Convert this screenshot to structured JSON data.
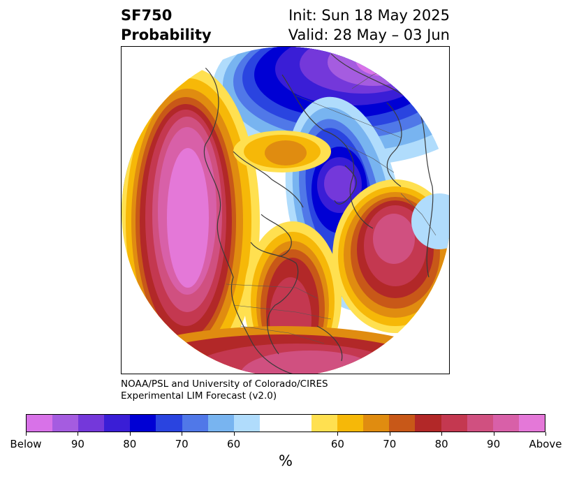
{
  "title": {
    "left_line1": "SF750",
    "left_line2": "Probability",
    "right_line1": "Init: Sun 18 May 2025",
    "right_line2": "Valid: 28 May – 03 Jun"
  },
  "credit": {
    "line1": "NOAA/PSL and University of Colorado/CIRES",
    "line2": "Experimental LIM Forecast (v2.0)"
  },
  "colorbar": {
    "colors": [
      "#d872e8",
      "#a55ce0",
      "#7438da",
      "#3a1ed6",
      "#0000d4",
      "#2a44e0",
      "#5078e8",
      "#78b4f0",
      "#b0dcfc",
      "#ffffff",
      "#ffffff",
      "#ffe050",
      "#f6b808",
      "#e08c10",
      "#c85818",
      "#b22828",
      "#c43850",
      "#d05080",
      "#d860a8",
      "#e478d8"
    ],
    "tick_labels": [
      "Below",
      "90",
      "80",
      "70",
      "60",
      "60",
      "70",
      "80",
      "90",
      "Above"
    ],
    "unit": "%"
  },
  "map": {
    "projection": "north-polar-stereographic",
    "features": [
      {
        "name": "below-anomaly-north-atlantic-europe",
        "category": "Below",
        "max_level": "90"
      },
      {
        "name": "below-anomaly-central-asia",
        "category": "Below",
        "max_level": "90"
      },
      {
        "name": "above-anomaly-north-pacific",
        "category": "Above",
        "max_level": "Above"
      },
      {
        "name": "above-anomaly-central-north-america",
        "category": "Above",
        "max_level": "90"
      },
      {
        "name": "above-anomaly-east-asia",
        "category": "Above",
        "max_level": "90"
      }
    ]
  }
}
